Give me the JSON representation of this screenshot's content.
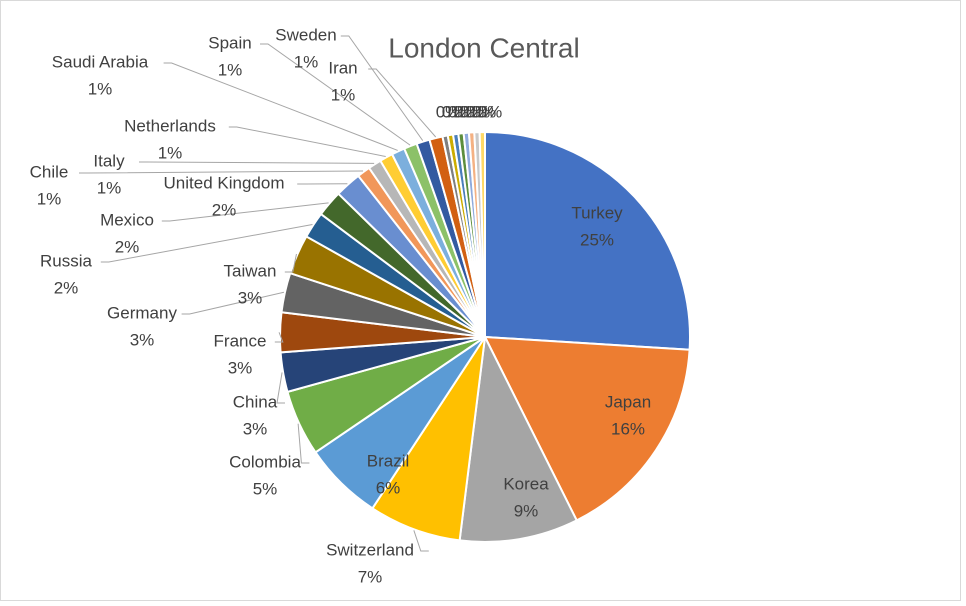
{
  "chart_data": {
    "type": "pie",
    "title": "London Central",
    "categories": [
      "Turkey",
      "Japan",
      "Korea",
      "Switzerland",
      "Brazil",
      "Colombia",
      "China",
      "France",
      "Germany",
      "Taiwan",
      "Russia",
      "Mexico",
      "United Kingdom",
      "Chile",
      "Italy",
      "Netherlands",
      "Saudi Arabia",
      "Spain",
      "Sweden",
      "Iran",
      null,
      null,
      null,
      null,
      null,
      null,
      null,
      null
    ],
    "values": [
      25,
      16,
      9,
      7,
      6,
      5,
      3,
      3,
      3,
      3,
      2,
      2,
      2,
      1,
      1,
      1,
      1,
      1,
      1,
      1,
      0.4,
      0.4,
      0.4,
      0.4,
      0.4,
      0.4,
      0.4,
      0.4
    ],
    "value_labels": [
      "25%",
      "16%",
      "9%",
      "7%",
      "6%",
      "5%",
      "3%",
      "3%",
      "3%",
      "3%",
      "2%",
      "2%",
      "2%",
      "1%",
      "1%",
      "1%",
      "1%",
      "1%",
      "1%",
      "1%",
      "0%",
      "0%",
      "0%",
      "0%",
      "0%",
      "0%",
      "0%",
      "0%"
    ],
    "colors": [
      "#4472c4",
      "#ed7d31",
      "#a5a5a5",
      "#ffc000",
      "#5b9bd5",
      "#70ad47",
      "#264478",
      "#9e480e",
      "#636363",
      "#997300",
      "#255e91",
      "#43682b",
      "#698ed0",
      "#f1975a",
      "#b7b7b7",
      "#ffcd33",
      "#7cafdd",
      "#8cc168",
      "#335aa1",
      "#d26012",
      "#7f7f7f",
      "#ccac00",
      "#4a7ebb",
      "#5d8e3d",
      "#8faadc",
      "#f4b183",
      "#c9c9c9",
      "#ffd966"
    ]
  }
}
